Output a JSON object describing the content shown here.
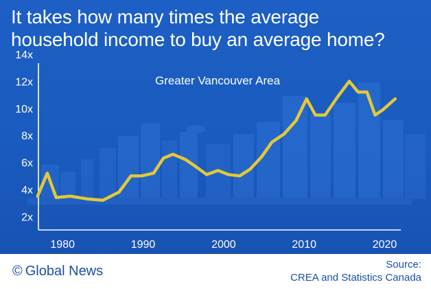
{
  "headline": {
    "line1": "It takes how many times the average",
    "line2": "household income to buy an average home?"
  },
  "colors": {
    "background": "#1b5cc2",
    "line": "#e3c83a",
    "axis": "#ffffff",
    "footer_text": "#1b4fa6"
  },
  "chart_data": {
    "type": "line",
    "title": "It takes how many times the average household income to buy an average home?",
    "subtitle": "Greater Vancouver Area",
    "xlabel": "",
    "ylabel": "",
    "xlim": [
      1977,
      2022
    ],
    "ylim": [
      1,
      14
    ],
    "x_ticks": [
      1980,
      1990,
      2000,
      2010,
      2020
    ],
    "x_tick_labels": [
      "1980",
      "1990",
      "2000",
      "2010",
      "2020"
    ],
    "y_ticks": [
      2,
      4,
      6,
      8,
      10,
      12,
      14
    ],
    "y_tick_labels": [
      "2x",
      "4x",
      "6x",
      "8x",
      "10x",
      "12x",
      "14x"
    ],
    "grid": false,
    "series": [
      {
        "name": "",
        "color": "#e3c83a",
        "x": [
          1976.9,
          1978.1,
          1979.2,
          1981,
          1983,
          1985,
          1987,
          1988.5,
          1989.8,
          1991.3,
          1992.5,
          1993.7,
          1995.3,
          1996.5,
          1997.9,
          1999.3,
          2000.6,
          2002,
          2003.3,
          2004.7,
          2006,
          2007.5,
          2009,
          2010.3,
          2011.4,
          2012.6,
          2014.1,
          2015.6,
          2016.7,
          2017.8,
          2018.8,
          2019.8,
          2021.3
        ],
        "y": [
          3.5,
          5.2,
          3.4,
          3.5,
          3.3,
          3.2,
          3.8,
          5.0,
          5.0,
          5.2,
          6.3,
          6.6,
          6.2,
          5.7,
          5.1,
          5.4,
          5.1,
          5.0,
          5.5,
          6.4,
          7.5,
          8.1,
          9.1,
          10.7,
          9.5,
          9.5,
          10.8,
          12.0,
          11.2,
          11.2,
          9.5,
          9.9,
          10.7
        ]
      }
    ]
  },
  "footer": {
    "brand_symbol": "©",
    "brand_name": "Global News",
    "source_line1": "Source:",
    "source_line2": "CREA and Statistics Canada"
  }
}
